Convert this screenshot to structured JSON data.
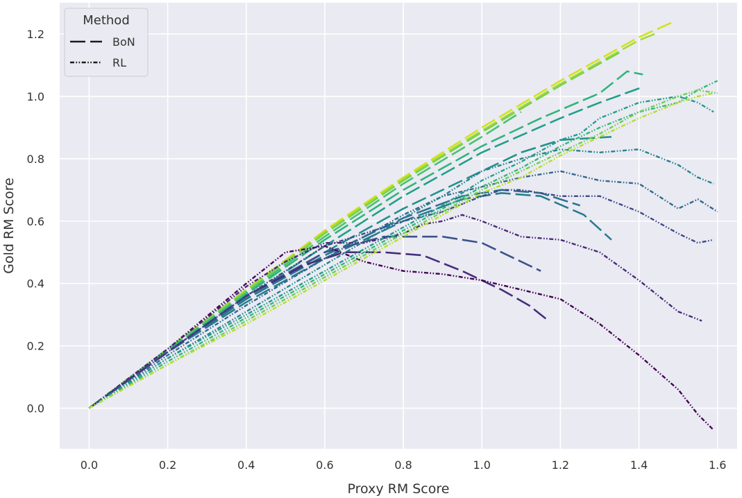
{
  "chart_data": {
    "type": "line",
    "title": "",
    "xlabel": "Proxy RM Score",
    "ylabel": "Gold RM Score",
    "xlim": [
      -0.075,
      1.65
    ],
    "ylim": [
      -0.13,
      1.3
    ],
    "xticks": [
      0.0,
      0.2,
      0.4,
      0.6,
      0.8,
      1.0,
      1.2,
      1.4,
      1.6
    ],
    "xtick_labels": [
      "0.0",
      "0.2",
      "0.4",
      "0.6",
      "0.8",
      "1.0",
      "1.2",
      "1.4",
      "1.6"
    ],
    "yticks": [
      0.0,
      0.2,
      0.4,
      0.6,
      0.8,
      1.0,
      1.2
    ],
    "ytick_labels": [
      "0.0",
      "0.2",
      "0.4",
      "0.6",
      "0.8",
      "1.0",
      "1.2"
    ],
    "grid": true,
    "background_color": "#eaeaf2",
    "legend": {
      "title": "Method",
      "placement": "top-left",
      "entries": [
        {
          "label": "BoN",
          "style": "dashed"
        },
        {
          "label": "RL",
          "style": "dashdotdot"
        }
      ]
    },
    "series": [
      {
        "method": "BoN",
        "color": "#d2e21b",
        "points": [
          [
            0,
            0
          ],
          [
            0.2,
            0.19
          ],
          [
            0.4,
            0.38
          ],
          [
            0.6,
            0.57
          ],
          [
            0.8,
            0.74
          ],
          [
            1.0,
            0.9
          ],
          [
            1.2,
            1.05
          ],
          [
            1.4,
            1.19
          ],
          [
            1.49,
            1.24
          ]
        ]
      },
      {
        "method": "BoN",
        "color": "#a5db36",
        "points": [
          [
            0,
            0
          ],
          [
            0.2,
            0.19
          ],
          [
            0.4,
            0.38
          ],
          [
            0.6,
            0.565
          ],
          [
            0.8,
            0.735
          ],
          [
            1.0,
            0.89
          ],
          [
            1.2,
            1.04
          ],
          [
            1.4,
            1.18
          ],
          [
            1.44,
            1.2
          ]
        ]
      },
      {
        "method": "BoN",
        "color": "#7ad151",
        "points": [
          [
            0,
            0
          ],
          [
            0.2,
            0.19
          ],
          [
            0.4,
            0.375
          ],
          [
            0.6,
            0.56
          ],
          [
            0.8,
            0.73
          ],
          [
            1.0,
            0.885
          ],
          [
            1.2,
            1.035
          ],
          [
            1.35,
            1.14
          ]
        ]
      },
      {
        "method": "BoN",
        "color": "#4ac16d",
        "points": [
          [
            0,
            0
          ],
          [
            0.2,
            0.185
          ],
          [
            0.4,
            0.37
          ],
          [
            0.6,
            0.55
          ],
          [
            0.8,
            0.72
          ],
          [
            1.0,
            0.87
          ],
          [
            1.1,
            0.95
          ]
        ]
      },
      {
        "method": "BoN",
        "color": "#2fb47c",
        "points": [
          [
            0,
            0
          ],
          [
            0.2,
            0.185
          ],
          [
            0.4,
            0.365
          ],
          [
            0.6,
            0.54
          ],
          [
            0.8,
            0.7
          ],
          [
            1.0,
            0.84
          ],
          [
            1.15,
            0.93
          ],
          [
            1.3,
            1.01
          ],
          [
            1.37,
            1.08
          ],
          [
            1.41,
            1.07
          ]
        ]
      },
      {
        "method": "BoN",
        "color": "#1fa088",
        "points": [
          [
            0,
            0
          ],
          [
            0.2,
            0.18
          ],
          [
            0.4,
            0.355
          ],
          [
            0.6,
            0.52
          ],
          [
            0.8,
            0.68
          ],
          [
            1.0,
            0.82
          ],
          [
            1.2,
            0.93
          ],
          [
            1.3,
            0.98
          ],
          [
            1.41,
            1.03
          ]
        ]
      },
      {
        "method": "BoN",
        "color": "#21918c",
        "points": [
          [
            0,
            0
          ],
          [
            0.2,
            0.18
          ],
          [
            0.4,
            0.35
          ],
          [
            0.6,
            0.5
          ],
          [
            0.8,
            0.64
          ],
          [
            1.0,
            0.76
          ],
          [
            1.1,
            0.82
          ],
          [
            1.2,
            0.86
          ],
          [
            1.33,
            0.87
          ]
        ]
      },
      {
        "method": "BoN",
        "color": "#287c8e",
        "points": [
          [
            0,
            0
          ],
          [
            0.2,
            0.18
          ],
          [
            0.4,
            0.34
          ],
          [
            0.6,
            0.48
          ],
          [
            0.8,
            0.6
          ],
          [
            0.95,
            0.67
          ],
          [
            1.05,
            0.69
          ],
          [
            1.15,
            0.68
          ],
          [
            1.26,
            0.62
          ],
          [
            1.33,
            0.54
          ]
        ]
      },
      {
        "method": "BoN",
        "color": "#2c728e",
        "points": [
          [
            0,
            0
          ],
          [
            0.2,
            0.18
          ],
          [
            0.4,
            0.35
          ],
          [
            0.6,
            0.49
          ],
          [
            0.8,
            0.61
          ],
          [
            0.95,
            0.68
          ],
          [
            1.05,
            0.7
          ],
          [
            1.15,
            0.69
          ],
          [
            1.25,
            0.65
          ]
        ]
      },
      {
        "method": "BoN",
        "color": "#3b528b",
        "points": [
          [
            0,
            0
          ],
          [
            0.2,
            0.18
          ],
          [
            0.4,
            0.36
          ],
          [
            0.6,
            0.5
          ],
          [
            0.75,
            0.55
          ],
          [
            0.9,
            0.55
          ],
          [
            1.0,
            0.53
          ],
          [
            1.1,
            0.47
          ],
          [
            1.15,
            0.44
          ]
        ]
      },
      {
        "method": "BoN",
        "color": "#472d7b",
        "points": [
          [
            0,
            0
          ],
          [
            0.2,
            0.18
          ],
          [
            0.4,
            0.36
          ],
          [
            0.55,
            0.46
          ],
          [
            0.65,
            0.5
          ],
          [
            0.75,
            0.5
          ],
          [
            0.85,
            0.49
          ],
          [
            0.95,
            0.44
          ],
          [
            1.05,
            0.38
          ],
          [
            1.12,
            0.33
          ],
          [
            1.17,
            0.28
          ]
        ]
      },
      {
        "method": "RL",
        "color": "#440154",
        "points": [
          [
            0,
            0
          ],
          [
            0.2,
            0.19
          ],
          [
            0.4,
            0.4
          ],
          [
            0.5,
            0.5
          ],
          [
            0.6,
            0.52
          ],
          [
            0.7,
            0.47
          ],
          [
            0.8,
            0.44
          ],
          [
            0.9,
            0.43
          ],
          [
            1.0,
            0.41
          ],
          [
            1.1,
            0.38
          ],
          [
            1.2,
            0.35
          ],
          [
            1.3,
            0.27
          ],
          [
            1.4,
            0.17
          ],
          [
            1.5,
            0.06
          ],
          [
            1.55,
            -0.02
          ],
          [
            1.59,
            -0.07
          ]
        ]
      },
      {
        "method": "RL",
        "color": "#482878",
        "points": [
          [
            0,
            0
          ],
          [
            0.2,
            0.19
          ],
          [
            0.4,
            0.39
          ],
          [
            0.5,
            0.47
          ],
          [
            0.6,
            0.53
          ],
          [
            0.7,
            0.53
          ],
          [
            0.8,
            0.56
          ],
          [
            0.85,
            0.59
          ],
          [
            0.9,
            0.6
          ],
          [
            0.95,
            0.62
          ],
          [
            1.0,
            0.6
          ],
          [
            1.1,
            0.55
          ],
          [
            1.2,
            0.54
          ],
          [
            1.3,
            0.5
          ],
          [
            1.4,
            0.41
          ],
          [
            1.5,
            0.31
          ],
          [
            1.56,
            0.28
          ]
        ]
      },
      {
        "method": "RL",
        "color": "#3e4989",
        "points": [
          [
            0,
            0
          ],
          [
            0.2,
            0.18
          ],
          [
            0.4,
            0.36
          ],
          [
            0.6,
            0.52
          ],
          [
            0.8,
            0.6
          ],
          [
            0.9,
            0.63
          ],
          [
            1.0,
            0.68
          ],
          [
            1.05,
            0.7
          ],
          [
            1.1,
            0.7
          ],
          [
            1.2,
            0.68
          ],
          [
            1.3,
            0.68
          ],
          [
            1.4,
            0.63
          ],
          [
            1.5,
            0.56
          ],
          [
            1.55,
            0.53
          ],
          [
            1.59,
            0.54
          ]
        ]
      },
      {
        "method": "RL",
        "color": "#31688e",
        "points": [
          [
            0,
            0
          ],
          [
            0.2,
            0.17
          ],
          [
            0.4,
            0.33
          ],
          [
            0.6,
            0.48
          ],
          [
            0.8,
            0.62
          ],
          [
            0.9,
            0.68
          ],
          [
            1.0,
            0.71
          ],
          [
            1.1,
            0.74
          ],
          [
            1.2,
            0.76
          ],
          [
            1.3,
            0.73
          ],
          [
            1.4,
            0.72
          ],
          [
            1.5,
            0.64
          ],
          [
            1.55,
            0.67
          ],
          [
            1.6,
            0.63
          ]
        ]
      },
      {
        "method": "RL",
        "color": "#26828e",
        "points": [
          [
            0,
            0
          ],
          [
            0.2,
            0.16
          ],
          [
            0.4,
            0.31
          ],
          [
            0.6,
            0.46
          ],
          [
            0.8,
            0.61
          ],
          [
            0.9,
            0.68
          ],
          [
            1.0,
            0.76
          ],
          [
            1.1,
            0.8
          ],
          [
            1.2,
            0.83
          ],
          [
            1.3,
            0.82
          ],
          [
            1.4,
            0.83
          ],
          [
            1.5,
            0.78
          ],
          [
            1.55,
            0.74
          ],
          [
            1.59,
            0.72
          ]
        ]
      },
      {
        "method": "RL",
        "color": "#1f9e89",
        "points": [
          [
            0,
            0
          ],
          [
            0.2,
            0.16
          ],
          [
            0.4,
            0.3
          ],
          [
            0.6,
            0.44
          ],
          [
            0.8,
            0.58
          ],
          [
            0.9,
            0.65
          ],
          [
            1.0,
            0.73
          ],
          [
            1.1,
            0.79
          ],
          [
            1.2,
            0.86
          ],
          [
            1.25,
            0.88
          ],
          [
            1.3,
            0.93
          ],
          [
            1.4,
            0.98
          ],
          [
            1.5,
            1.0
          ],
          [
            1.55,
            0.98
          ],
          [
            1.59,
            0.95
          ]
        ]
      },
      {
        "method": "RL",
        "color": "#35b779",
        "points": [
          [
            0,
            0
          ],
          [
            0.2,
            0.15
          ],
          [
            0.4,
            0.29
          ],
          [
            0.6,
            0.43
          ],
          [
            0.8,
            0.57
          ],
          [
            0.9,
            0.64
          ],
          [
            1.0,
            0.71
          ],
          [
            1.1,
            0.77
          ],
          [
            1.2,
            0.84
          ],
          [
            1.3,
            0.9
          ],
          [
            1.4,
            0.95
          ],
          [
            1.5,
            0.98
          ],
          [
            1.55,
            1.02
          ],
          [
            1.6,
            1.05
          ]
        ]
      },
      {
        "method": "RL",
        "color": "#6ece58",
        "points": [
          [
            0,
            0
          ],
          [
            0.2,
            0.14
          ],
          [
            0.4,
            0.28
          ],
          [
            0.6,
            0.42
          ],
          [
            0.8,
            0.56
          ],
          [
            0.9,
            0.63
          ],
          [
            1.0,
            0.7
          ],
          [
            1.1,
            0.76
          ],
          [
            1.2,
            0.82
          ],
          [
            1.3,
            0.88
          ],
          [
            1.4,
            0.95
          ],
          [
            1.5,
            1.0
          ],
          [
            1.55,
            1.02
          ],
          [
            1.6,
            1.01
          ]
        ]
      },
      {
        "method": "RL",
        "color": "#b5de2b",
        "points": [
          [
            0,
            0
          ],
          [
            0.2,
            0.14
          ],
          [
            0.4,
            0.27
          ],
          [
            0.6,
            0.41
          ],
          [
            0.8,
            0.55
          ],
          [
            0.9,
            0.62
          ],
          [
            1.0,
            0.69
          ],
          [
            1.1,
            0.74
          ],
          [
            1.2,
            0.81
          ],
          [
            1.3,
            0.87
          ],
          [
            1.4,
            0.93
          ],
          [
            1.5,
            0.98
          ],
          [
            1.55,
            1.0
          ],
          [
            1.59,
            1.01
          ]
        ]
      }
    ]
  }
}
